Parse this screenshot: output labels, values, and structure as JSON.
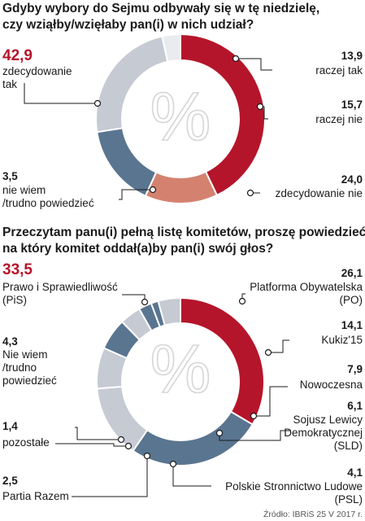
{
  "colors": {
    "red": "#b5152b",
    "salmon": "#d4826f",
    "slate": "#5a7590",
    "light_gray": "#c5cad3",
    "pale_gray": "#e9ebef"
  },
  "source": "Źródło: IBRiS 25 V 2017 r.",
  "chart_data": [
    {
      "type": "pie",
      "donut": true,
      "center_symbol": "%",
      "title_lines": [
        "Gdyby wybory do Sejmu odbywały się w tę niedzielę,",
        "czy wziąłby/wzięłaby pan(i) w nich udział?"
      ],
      "slices": [
        {
          "value": "42,9",
          "label_lines": [
            "zdecydowanie",
            "tak"
          ],
          "color": "red"
        },
        {
          "value": "13,9",
          "label_lines": [
            "raczej tak"
          ],
          "color": "salmon"
        },
        {
          "value": "15,7",
          "label_lines": [
            "raczej nie"
          ],
          "color": "slate"
        },
        {
          "value": "24,0",
          "label_lines": [
            "zdecydowanie nie"
          ],
          "color": "light_gray"
        },
        {
          "value": "3,5",
          "label_lines": [
            "nie wiem",
            "/trudno powiedzieć"
          ],
          "color": "pale_gray"
        }
      ]
    },
    {
      "type": "pie",
      "donut": true,
      "center_symbol": "%",
      "title_lines": [
        "Przeczytam panu(i) pełną listę komitetów, proszę powiedzieć,",
        "na który komitet oddał(a)by pan(i) swój głos?"
      ],
      "slices": [
        {
          "value": "33,5",
          "label_lines": [
            "Prawo i Sprawiedliwość",
            "(PiS)"
          ],
          "color": "red"
        },
        {
          "value": "26,1",
          "label_lines": [
            "Platforma Obywatelska",
            "(PO)"
          ],
          "color": "slate"
        },
        {
          "value": "14,1",
          "label_lines": [
            "Kukiz'15"
          ],
          "color": "light_gray"
        },
        {
          "value": "7,9",
          "label_lines": [
            "Nowoczesna"
          ],
          "color": "light_gray"
        },
        {
          "value": "6,1",
          "label_lines": [
            "Sojusz Lewicy",
            "Demokratycznej",
            "(SLD)"
          ],
          "color": "slate"
        },
        {
          "value": "4,1",
          "label_lines": [
            "Polskie Stronnictwo Ludowe",
            "(PSL)"
          ],
          "color": "light_gray"
        },
        {
          "value": "2,5",
          "label_lines": [
            "Partia Razem"
          ],
          "color": "slate"
        },
        {
          "value": "1,4",
          "label_lines": [
            "pozostałe"
          ],
          "color": "slate"
        },
        {
          "value": "4,3",
          "label_lines": [
            "Nie wiem",
            "/trudno",
            "powiedzieć"
          ],
          "color": "light_gray"
        }
      ]
    }
  ]
}
